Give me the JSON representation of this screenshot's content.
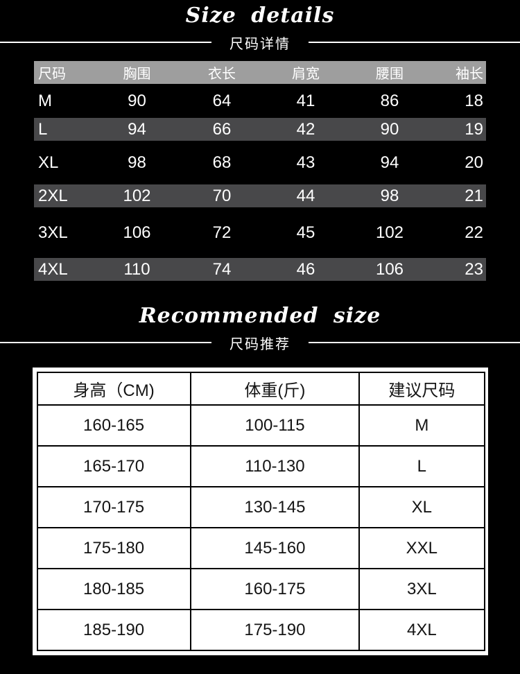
{
  "page": {
    "background": "#000000"
  },
  "size_section": {
    "title_en": "Size details",
    "title_zh": "尺码详情"
  },
  "size_table": {
    "headers": [
      "尺码",
      "胸围",
      "衣长",
      "肩宽",
      "腰围",
      "袖长"
    ],
    "rows": [
      [
        "M",
        "90",
        "64",
        "41",
        "86",
        "18"
      ],
      [
        "L",
        "94",
        "66",
        "42",
        "90",
        "19"
      ],
      [
        "XL",
        "98",
        "68",
        "43",
        "94",
        "20"
      ],
      [
        "2XL",
        "102",
        "70",
        "44",
        "98",
        "21"
      ],
      [
        "3XL",
        "106",
        "72",
        "45",
        "102",
        "22"
      ],
      [
        "4XL",
        "110",
        "74",
        "46",
        "106",
        "23"
      ]
    ],
    "colors": {
      "header_bg": "#9e9e9e",
      "stripe_bg": "#48484a",
      "text": "#ffffff"
    }
  },
  "recommend_section": {
    "title_en": "Recommended size",
    "title_zh": "尺码推荐"
  },
  "recommend_table": {
    "headers": [
      "身高（CM)",
      "体重(斤)",
      "建议尺码"
    ],
    "rows": [
      [
        "160-165",
        "100-115",
        "M"
      ],
      [
        "165-170",
        "110-130",
        "L"
      ],
      [
        "170-175",
        "130-145",
        "XL"
      ],
      [
        "175-180",
        "145-160",
        "XXL"
      ],
      [
        "180-185",
        "160-175",
        "3XL"
      ],
      [
        "185-190",
        "175-190",
        "4XL"
      ]
    ],
    "colors": {
      "bg": "#ffffff",
      "border": "#000000",
      "text": "#141414"
    }
  }
}
